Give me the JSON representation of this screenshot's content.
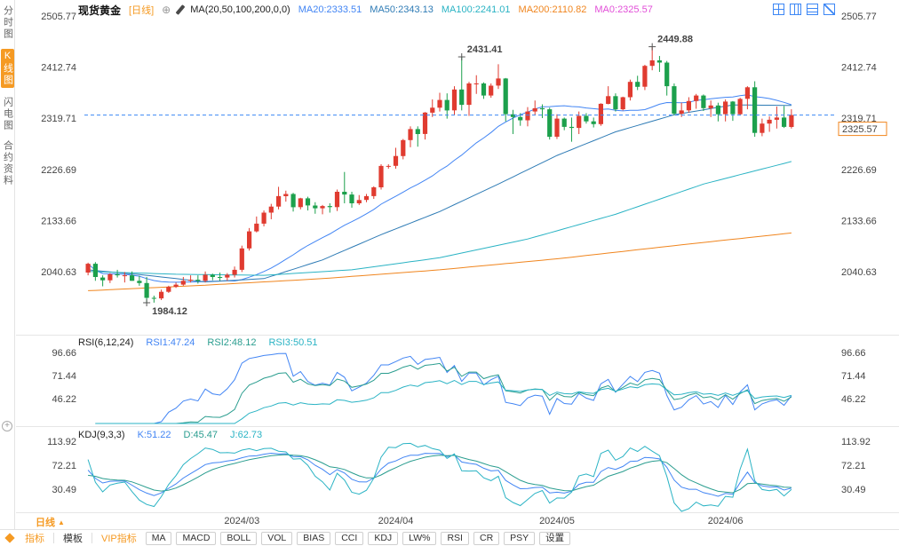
{
  "header": {
    "title": "现货黄金",
    "period_tag": "[日线]",
    "magnet_icon": "⊕",
    "ma_label": "MA(20,50,100,200,0,0)",
    "ma_values": [
      {
        "label": "MA20:2333.51",
        "color": "#4285f4"
      },
      {
        "label": "MA50:2343.13",
        "color": "#2e7bb5"
      },
      {
        "label": "MA100:2241.01",
        "color": "#2ab3c4"
      },
      {
        "label": "MA200:2110.82",
        "color": "#f0851e"
      },
      {
        "label": "MA0:2325.57",
        "color": "#e24fd8"
      }
    ]
  },
  "sidebar": {
    "items": [
      {
        "label": "分时图",
        "active": false
      },
      {
        "label": "K线图",
        "active": true
      },
      {
        "label": "闪电图",
        "active": false
      },
      {
        "label": "合约资料",
        "active": false
      }
    ]
  },
  "rsi_header": {
    "label": "RSI(6,12,24)",
    "values": [
      {
        "label": "RSI1:47.24",
        "color": "#4285f4"
      },
      {
        "label": "RSI2:48.12",
        "color": "#2a9d8f"
      },
      {
        "label": "RSI3:50.51",
        "color": "#2ab3c4"
      }
    ]
  },
  "kdj_header": {
    "label": "KDJ(9,3,3)",
    "values": [
      {
        "label": "K:51.22",
        "color": "#4285f4"
      },
      {
        "label": "D:45.47",
        "color": "#2a9d8f"
      },
      {
        "label": "J:62.73",
        "color": "#2ab3c4"
      }
    ]
  },
  "bottom": {
    "period_label": "日线",
    "period_arrow": "▲",
    "toolbar_tabs": [
      {
        "label": "指标",
        "hot": true
      },
      {
        "label": "模板",
        "hot": false
      },
      {
        "label": "VIP指标",
        "hot": true
      }
    ],
    "toolbar_buttons": [
      "MA",
      "MACD",
      "BOLL",
      "VOL",
      "BIAS",
      "CCI",
      "KDJ",
      "LW%",
      "RSI",
      "CR",
      "PSY",
      "设置"
    ]
  },
  "misc": {
    "panel_plus": "+"
  },
  "chart_data": {
    "type": "candlestick",
    "symbol": "现货黄金",
    "interval": "日线",
    "colors": {
      "up": "#e03b30",
      "down": "#1ca04c",
      "last_price_line": "#3d87f5",
      "last_price_label": "#f0851e",
      "annotation": "#d93026"
    },
    "price_axis": [
      2505.77,
      2412.74,
      2319.71,
      2226.69,
      2133.66,
      2040.63
    ],
    "last_price": 2325.57,
    "x_labels": [
      {
        "index": 21,
        "label": "2024/03"
      },
      {
        "index": 42,
        "label": "2024/04"
      },
      {
        "index": 64,
        "label": "2024/05"
      },
      {
        "index": 87,
        "label": "2024/06"
      }
    ],
    "annotations": [
      {
        "index": 8,
        "price": 1984.12,
        "label": "1984.12",
        "position": "below"
      },
      {
        "index": 51,
        "price": 2431.41,
        "label": "2431.41",
        "position": "above"
      },
      {
        "index": 77,
        "price": 2449.88,
        "label": "2449.88",
        "position": "above"
      }
    ],
    "ma_lines": [
      {
        "name": "MA20",
        "color": "#4285f4",
        "window": 20
      },
      {
        "name": "MA50",
        "color": "#2e7bb5",
        "anchors": [
          [
            0,
            2044
          ],
          [
            8,
            2034
          ],
          [
            16,
            2022
          ],
          [
            24,
            2028
          ],
          [
            32,
            2062
          ],
          [
            40,
            2108
          ],
          [
            48,
            2150
          ],
          [
            56,
            2200
          ],
          [
            64,
            2252
          ],
          [
            72,
            2295
          ],
          [
            80,
            2326
          ],
          [
            88,
            2344
          ],
          [
            96,
            2343
          ]
        ]
      },
      {
        "name": "MA100",
        "color": "#2ab3c4",
        "anchors": [
          [
            0,
            2041
          ],
          [
            12,
            2036
          ],
          [
            24,
            2034
          ],
          [
            36,
            2044
          ],
          [
            48,
            2066
          ],
          [
            60,
            2100
          ],
          [
            72,
            2145
          ],
          [
            84,
            2200
          ],
          [
            96,
            2241
          ]
        ]
      },
      {
        "name": "MA200",
        "color": "#f0851e",
        "anchors": [
          [
            0,
            2006
          ],
          [
            16,
            2016
          ],
          [
            32,
            2028
          ],
          [
            48,
            2044
          ],
          [
            64,
            2064
          ],
          [
            80,
            2088
          ],
          [
            96,
            2111
          ]
        ]
      }
    ],
    "rsi": {
      "periods": [
        6,
        12,
        24
      ],
      "colors": [
        "#4285f4",
        "#2a9d8f",
        "#2ab3c4"
      ],
      "axis": [
        96.66,
        71.44,
        46.22
      ]
    },
    "kdj": {
      "params": [
        9,
        3,
        3
      ],
      "colors": [
        "#4285f4",
        "#2a9d8f",
        "#2ab3c4"
      ],
      "axis": [
        113.92,
        72.21,
        30.49
      ]
    },
    "candles": [
      [
        2039,
        2057,
        2034,
        2055
      ],
      [
        2055,
        2058,
        2024,
        2031
      ],
      [
        2030,
        2034,
        2014,
        2025
      ],
      [
        2025,
        2038,
        2020,
        2036
      ],
      [
        2036,
        2044,
        2030,
        2034
      ],
      [
        2034,
        2040,
        2021,
        2034
      ],
      [
        2034,
        2041,
        2024,
        2024
      ],
      [
        2024,
        2033,
        2015,
        2020
      ],
      [
        2020,
        2031,
        1984.12,
        1993
      ],
      [
        1993,
        1997,
        1984.3,
        1992
      ],
      [
        1992,
        2008,
        1989,
        2004
      ],
      [
        2004,
        2015,
        2002,
        2013
      ],
      [
        2013,
        2021,
        2011,
        2017
      ],
      [
        2017,
        2031,
        2015,
        2024
      ],
      [
        2024,
        2034,
        2021,
        2026
      ],
      [
        2026,
        2034,
        2019,
        2024
      ],
      [
        2024,
        2041,
        2021,
        2035
      ],
      [
        2035,
        2037,
        2025,
        2031
      ],
      [
        2031,
        2039,
        2024,
        2030
      ],
      [
        2030,
        2038,
        2024,
        2035
      ],
      [
        2035,
        2050,
        2030,
        2044
      ],
      [
        2044,
        2088,
        2040,
        2083
      ],
      [
        2083,
        2120,
        2079,
        2114
      ],
      [
        2114,
        2141,
        2112,
        2128
      ],
      [
        2128,
        2152,
        2123,
        2148
      ],
      [
        2148,
        2164,
        2136,
        2159
      ],
      [
        2159,
        2195,
        2154,
        2178
      ],
      [
        2178,
        2188,
        2168,
        2182
      ],
      [
        2182,
        2184,
        2150,
        2158
      ],
      [
        2158,
        2175,
        2154,
        2174
      ],
      [
        2174,
        2177,
        2152,
        2161
      ],
      [
        2161,
        2167,
        2146,
        2156
      ],
      [
        2156,
        2162,
        2145,
        2160
      ],
      [
        2160,
        2165,
        2148,
        2158
      ],
      [
        2158,
        2190,
        2151,
        2186
      ],
      [
        2186,
        2222,
        2165,
        2181
      ],
      [
        2181,
        2186,
        2157,
        2165
      ],
      [
        2165,
        2180,
        2162,
        2171
      ],
      [
        2171,
        2182,
        2167,
        2178
      ],
      [
        2178,
        2196,
        2173,
        2194
      ],
      [
        2194,
        2236,
        2190,
        2233
      ],
      [
        2233,
        2236,
        2228,
        2233
      ],
      [
        2233,
        2266,
        2228,
        2251
      ],
      [
        2251,
        2282,
        2245,
        2280
      ],
      [
        2280,
        2305,
        2267,
        2300
      ],
      [
        2300,
        2305,
        2268,
        2291
      ],
      [
        2291,
        2331,
        2281,
        2330
      ],
      [
        2330,
        2354,
        2322,
        2339
      ],
      [
        2339,
        2366,
        2332,
        2353
      ],
      [
        2353,
        2365,
        2319,
        2334
      ],
      [
        2334,
        2378,
        2326,
        2372
      ],
      [
        2372,
        2431.41,
        2334,
        2344
      ],
      [
        2344,
        2386,
        2324,
        2383
      ],
      [
        2383,
        2398,
        2364,
        2383
      ],
      [
        2383,
        2385,
        2355,
        2361
      ],
      [
        2361,
        2383,
        2357,
        2379
      ],
      [
        2379,
        2418,
        2373,
        2392
      ],
      [
        2392,
        2393,
        2314,
        2327
      ],
      [
        2327,
        2335,
        2291,
        2322
      ],
      [
        2322,
        2329,
        2306,
        2316
      ],
      [
        2316,
        2340,
        2305,
        2332
      ],
      [
        2332,
        2352,
        2325,
        2338
      ],
      [
        2338,
        2345,
        2320,
        2336
      ],
      [
        2336,
        2339,
        2281,
        2286
      ],
      [
        2286,
        2327,
        2282,
        2319
      ],
      [
        2319,
        2321,
        2298,
        2304
      ],
      [
        2304,
        2321,
        2277,
        2302
      ],
      [
        2302,
        2332,
        2291,
        2324
      ],
      [
        2324,
        2329,
        2310,
        2314
      ],
      [
        2314,
        2321,
        2303,
        2309
      ],
      [
        2309,
        2347,
        2306,
        2346
      ],
      [
        2346,
        2378,
        2345,
        2360
      ],
      [
        2360,
        2365,
        2332,
        2336
      ],
      [
        2336,
        2359,
        2334,
        2358
      ],
      [
        2358,
        2390,
        2352,
        2386
      ],
      [
        2386,
        2397,
        2371,
        2377
      ],
      [
        2377,
        2417,
        2371,
        2415
      ],
      [
        2415,
        2449.88,
        2407,
        2425
      ],
      [
        2425,
        2433,
        2404,
        2421
      ],
      [
        2421,
        2424,
        2361,
        2378
      ],
      [
        2378,
        2383,
        2325,
        2328
      ],
      [
        2328,
        2348,
        2322,
        2334
      ],
      [
        2334,
        2358,
        2330,
        2351
      ],
      [
        2351,
        2364,
        2337,
        2361
      ],
      [
        2361,
        2363,
        2333,
        2338
      ],
      [
        2338,
        2352,
        2322,
        2343
      ],
      [
        2343,
        2348,
        2314,
        2327
      ],
      [
        2327,
        2354,
        2314,
        2350
      ],
      [
        2350,
        2351,
        2315,
        2327
      ],
      [
        2327,
        2357,
        2325,
        2355
      ],
      [
        2355,
        2378,
        2336,
        2376
      ],
      [
        2376,
        2387,
        2286,
        2293
      ],
      [
        2293,
        2319,
        2287,
        2310
      ],
      [
        2310,
        2323,
        2295,
        2317
      ],
      [
        2317,
        2341,
        2301,
        2321
      ],
      [
        2321,
        2342,
        2302,
        2304
      ],
      [
        2304,
        2336,
        2301,
        2325.57
      ]
    ]
  }
}
